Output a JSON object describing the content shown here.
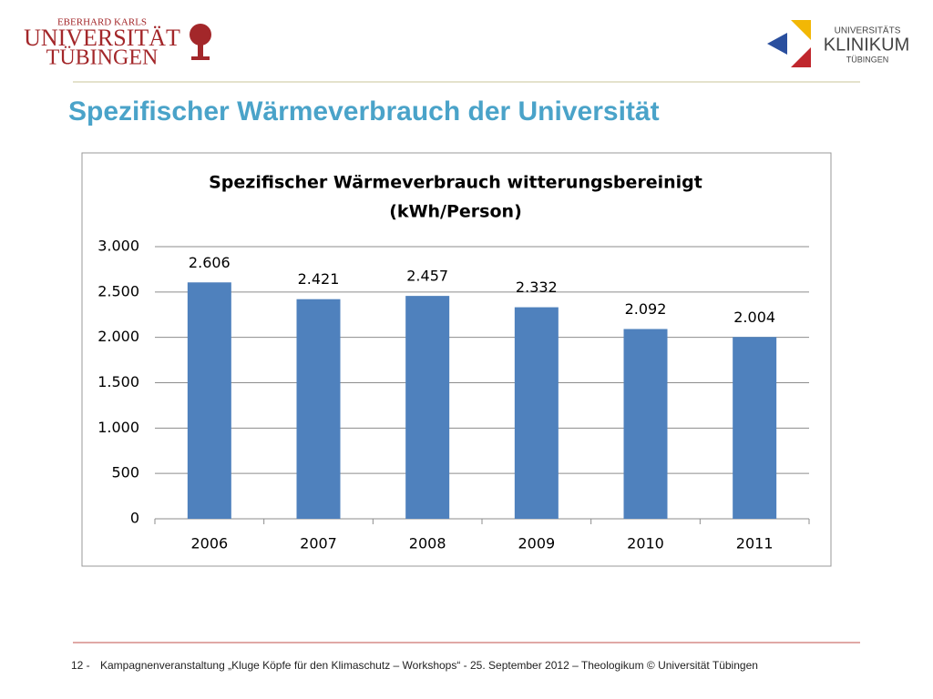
{
  "header": {
    "university": [
      "EBERHARD KARLS",
      "UNIVERSITÄT",
      "TÜBINGEN"
    ],
    "clinic": [
      "UNIVERSITÄTS",
      "KLINIKUM",
      "TÜBINGEN"
    ]
  },
  "slide_title": "Spezifischer Wärmeverbrauch der Universität",
  "chart_data": {
    "type": "bar",
    "title": "Spezifischer Wärmeverbrauch witterungsbereinigt",
    "subtitle": "(kWh/Person)",
    "categories": [
      "2006",
      "2007",
      "2008",
      "2009",
      "2010",
      "2011"
    ],
    "values": [
      2606,
      2421,
      2457,
      2332,
      2092,
      2004
    ],
    "value_labels": [
      "2.606",
      "2.421",
      "2.457",
      "2.332",
      "2.092",
      "2.004"
    ],
    "color": "#4f81bd",
    "ylim": [
      0,
      3000
    ],
    "yticks": [
      0,
      500,
      {
        "value": 1000,
        "label": "1.000"
      },
      {
        "value": 1500,
        "label": "1.500"
      },
      {
        "value": 2000,
        "label": "2.000"
      },
      {
        "value": 2500,
        "label": "2.500"
      },
      {
        "value": 3000,
        "label": "3.000"
      }
    ],
    "grid": true
  },
  "footer": {
    "page": "12 -",
    "text": "Kampagnenveranstaltung „Kluge Köpfe für den Klimaschutz – Workshops“ - 25. September 2012 – Theologikum © Universität Tübingen"
  }
}
